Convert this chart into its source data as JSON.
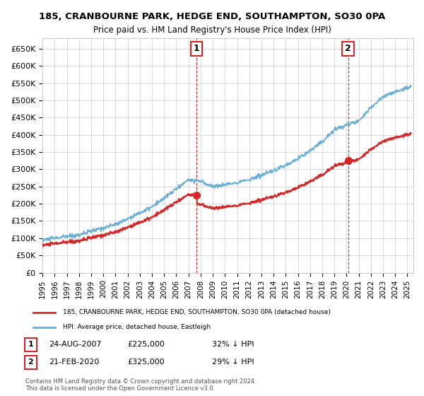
{
  "title": "185, CRANBOURNE PARK, HEDGE END, SOUTHAMPTON, SO30 0PA",
  "subtitle": "Price paid vs. HM Land Registry's House Price Index (HPI)",
  "ylabel_ticks": [
    "£0",
    "£50K",
    "£100K",
    "£150K",
    "£200K",
    "£250K",
    "£300K",
    "£350K",
    "£400K",
    "£450K",
    "£500K",
    "£550K",
    "£600K",
    "£650K"
  ],
  "ytick_values": [
    0,
    50000,
    100000,
    150000,
    200000,
    250000,
    300000,
    350000,
    400000,
    450000,
    500000,
    550000,
    600000,
    650000
  ],
  "ylim": [
    0,
    680000
  ],
  "xlim_start": 1995.0,
  "xlim_end": 2025.5,
  "hpi_color": "#6baed6",
  "price_color": "#d62728",
  "sale1_date": 2007.648,
  "sale1_price": 225000,
  "sale2_date": 2020.13,
  "sale2_price": 325000,
  "legend_label1": "185, CRANBOURNE PARK, HEDGE END, SOUTHAMPTON, SO30 0PA (detached house)",
  "legend_label2": "HPI: Average price, detached house, Eastleigh",
  "annotation1_label": "1",
  "annotation2_label": "2",
  "table_row1": "1    24-AUG-2007         £225,000        32% ↓ HPI",
  "table_row2": "2    21-FEB-2020         £325,000        29% ↓ HPI",
  "footer": "Contains HM Land Registry data © Crown copyright and database right 2024.\nThis data is licensed under the Open Government Licence v3.0.",
  "background_color": "#ffffff",
  "grid_color": "#cccccc"
}
